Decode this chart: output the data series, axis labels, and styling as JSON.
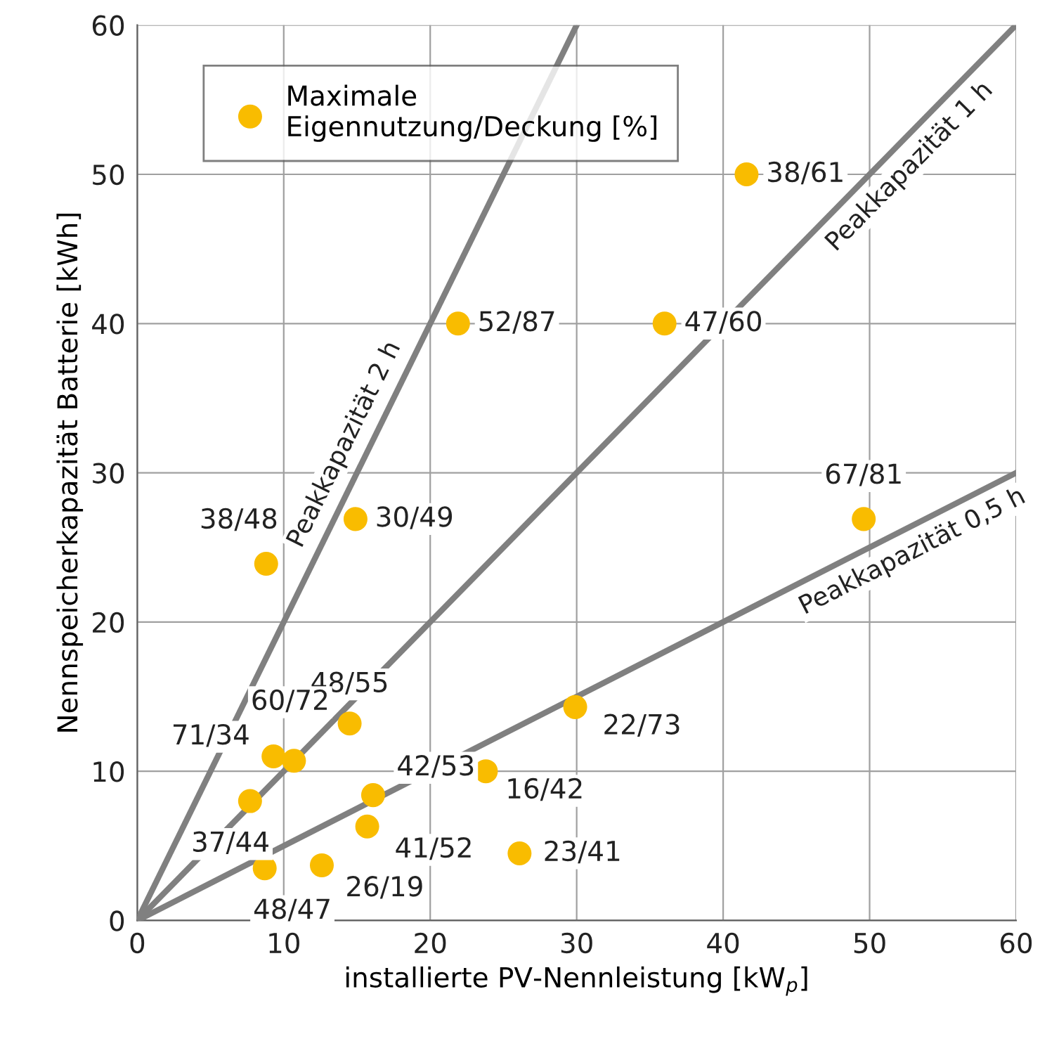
{
  "chart_data": {
    "type": "scatter",
    "xlabel": "installierte PV-Nennleistung [kW$_{p}$]",
    "ylabel": "Nennspeicherkapazität Batterie [kWh]",
    "xlim": [
      0,
      60
    ],
    "ylim": [
      0,
      60
    ],
    "xticks": [
      0,
      10,
      20,
      30,
      40,
      50,
      60
    ],
    "yticks": [
      0,
      10,
      20,
      30,
      40,
      50,
      60
    ],
    "grid": true,
    "legend": "top left",
    "series": [
      {
        "name": "Maximale\nEigennutzung/Deckung [%]",
        "color": "#f9bc00",
        "marker": "circle",
        "x": [
          41.6,
          21.9,
          36.0,
          49.6,
          14.9,
          8.8,
          29.9,
          14.5,
          9.3,
          10.7,
          7.7,
          23.8,
          16.1,
          15.7,
          26.1,
          12.6,
          8.7
        ],
        "values": [
          50,
          40,
          40,
          26.9,
          26.9,
          23.9,
          14.3,
          13.2,
          11.0,
          10.7,
          8.0,
          10.0,
          8.4,
          6.3,
          4.5,
          3.7,
          3.5
        ],
        "value_labels": [
          "38/61",
          "52/87",
          "47/60",
          "67/81",
          "30/49",
          "38/48",
          "22/73",
          "48/55",
          "71/34",
          "60/72",
          "37/44",
          "16/42",
          "42/53",
          "41/52",
          "23/41",
          "26/19",
          "48/47"
        ]
      },
      {
        "name": "Peakkapazität 2 h",
        "type": "line",
        "color": "#808080",
        "x": [
          0,
          30
        ],
        "values": [
          0,
          60
        ]
      },
      {
        "name": "Peakkapazität 1 h",
        "type": "line",
        "color": "#808080",
        "x": [
          0,
          60
        ],
        "values": [
          0,
          60
        ]
      },
      {
        "name": "Peakkapazität 0,5 h",
        "type": "line",
        "color": "#808080",
        "x": [
          0,
          60
        ],
        "values": [
          0,
          30
        ]
      }
    ]
  }
}
